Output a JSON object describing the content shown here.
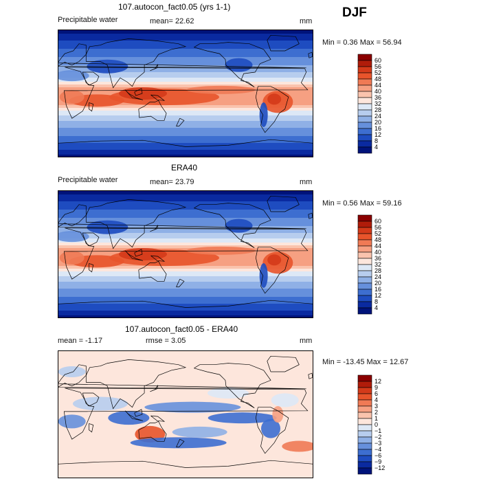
{
  "season": "DJF",
  "panels": [
    {
      "title": "107.autocon_fact0.05 (yrs 1-1)",
      "variable": "Precipitable water",
      "mean_text": "mean=  22.62",
      "units": "mm",
      "minmax_text": "Min =   0.36 Max =  56.94",
      "kind": "abs"
    },
    {
      "title": "ERA40",
      "variable": "Precipitable water",
      "mean_text": "mean=  23.79",
      "units": "mm",
      "minmax_text": "Min =   0.56 Max =  59.16",
      "kind": "abs"
    },
    {
      "title": "107.autocon_fact0.05 - ERA40",
      "mean_text": "mean =  -1.17",
      "rmse_text": "rmse =   3.05",
      "units": "mm",
      "minmax_text": "Min = -13.45 Max =  12.67",
      "kind": "diff"
    }
  ],
  "colorbar_abs": {
    "labels": [
      "60",
      "56",
      "52",
      "48",
      "44",
      "40",
      "36",
      "32",
      "28",
      "24",
      "20",
      "16",
      "12",
      "8",
      "4"
    ],
    "colors": [
      "#8b0000",
      "#b01c0a",
      "#d43a1a",
      "#e8542b",
      "#f07a55",
      "#f6a082",
      "#fac3ad",
      "#fde6dc",
      "#dde8f6",
      "#b7cdee",
      "#8fb0e6",
      "#6690dc",
      "#3d6ed0",
      "#1e4cc0",
      "#0a2aa0",
      "#00137a"
    ]
  },
  "colorbar_diff": {
    "labels": [
      "12",
      "9",
      "6",
      "4",
      "3",
      "2",
      "1",
      "0",
      "−1",
      "−2",
      "−3",
      "−4",
      "−6",
      "−9",
      "−12"
    ],
    "colors": [
      "#8b0000",
      "#b01c0a",
      "#d43a1a",
      "#e8542b",
      "#f07a55",
      "#f6a082",
      "#fac3ad",
      "#fde6dc",
      "#dde8f6",
      "#b7cdee",
      "#8fb0e6",
      "#6690dc",
      "#3d6ed0",
      "#1e4cc0",
      "#0a2aa0",
      "#00137a"
    ]
  }
}
